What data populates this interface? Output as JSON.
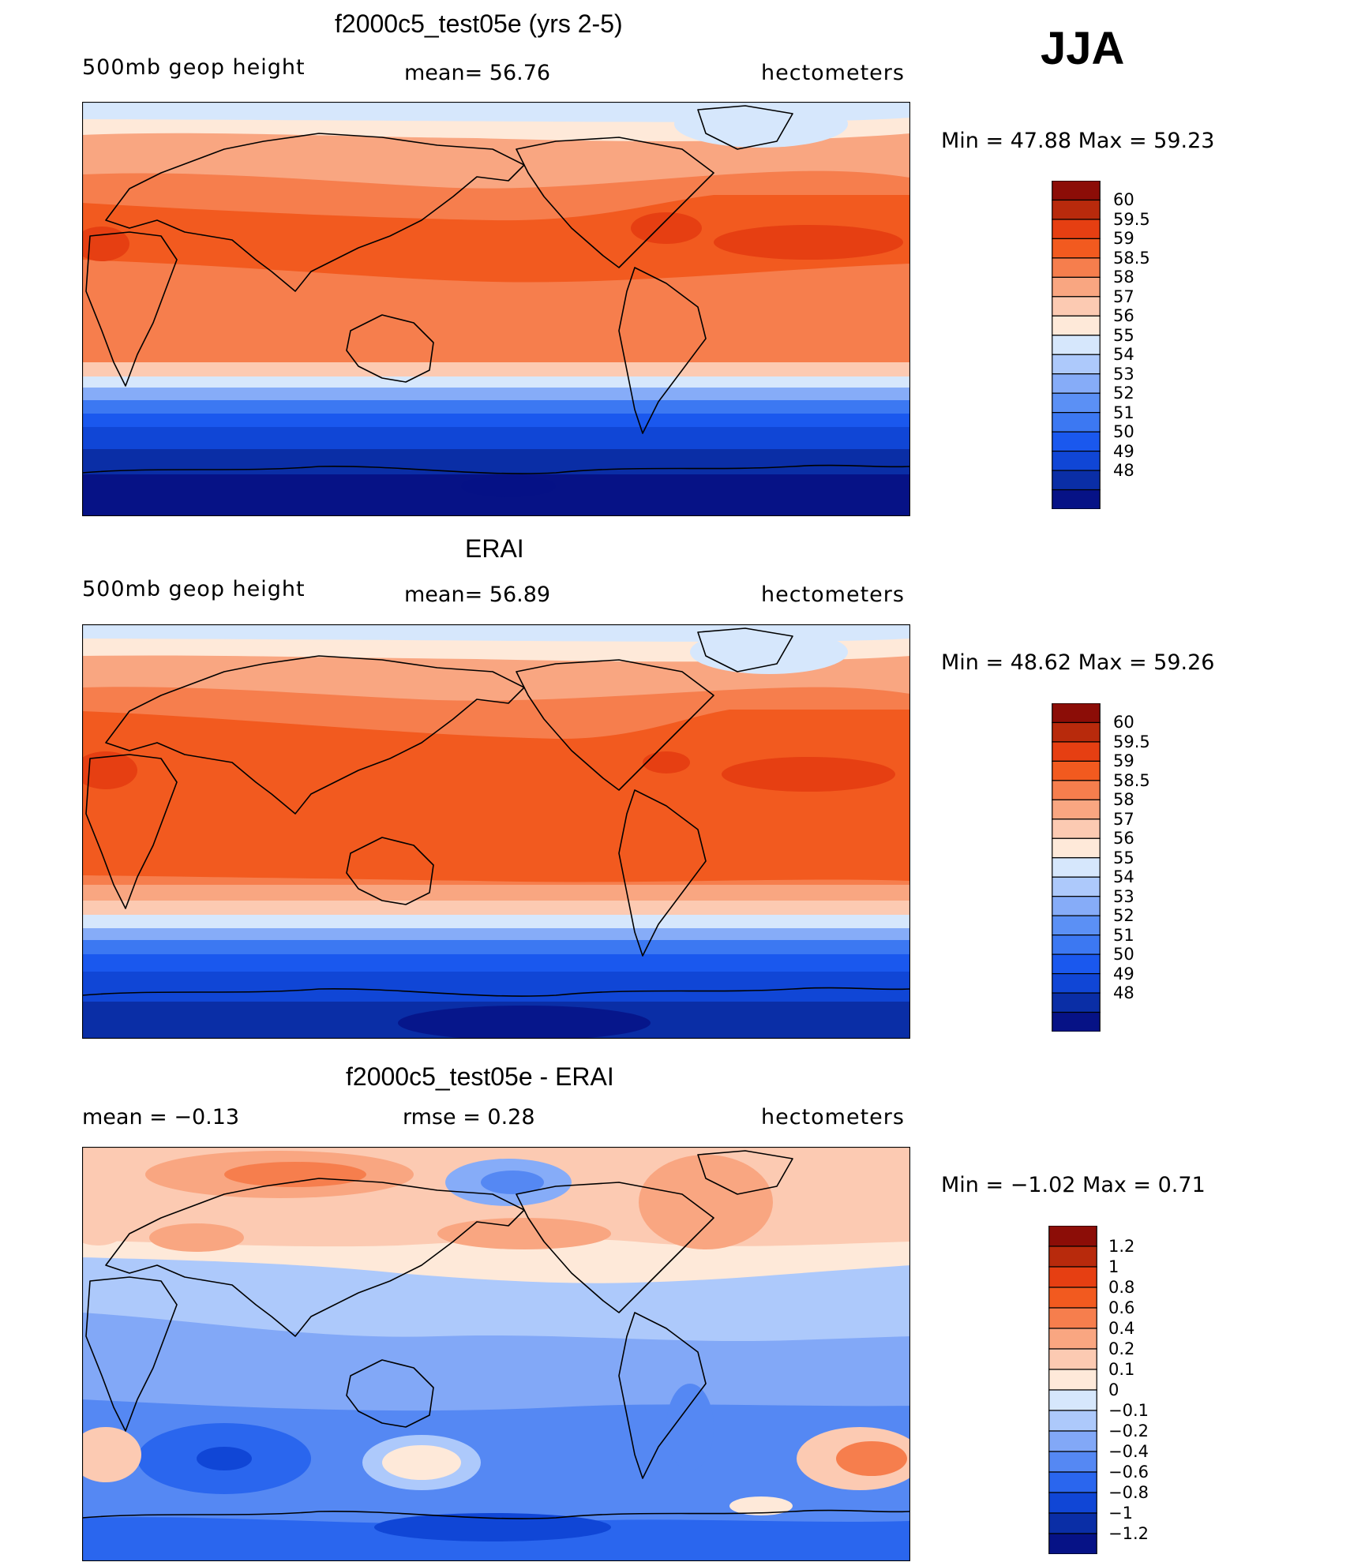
{
  "season": "JJA",
  "colors": {
    "abs": [
      "#061286",
      "#0a2ea6",
      "#1046d6",
      "#1a58ee",
      "#3c78f2",
      "#5b90f5",
      "#86acf8",
      "#adc9fb",
      "#d6e7fc",
      "#fee9d9",
      "#fccab2",
      "#f9a681",
      "#f67e4d",
      "#f25a1f",
      "#e63f12",
      "#b82a0c",
      "#8c0d07"
    ],
    "diff": [
      "#061286",
      "#0a2ea6",
      "#1046d6",
      "#2a66ee",
      "#5588f3",
      "#82a8f7",
      "#adc9fb",
      "#d6e7fc",
      "#fee9d9",
      "#fccab2",
      "#f9a681",
      "#f67e4d",
      "#f25a1f",
      "#e63f12",
      "#b82a0c",
      "#8c0d07"
    ]
  },
  "panels": [
    {
      "title": "f2000c5_test05e (yrs 2-5)",
      "left_label": "500mb  geop  height",
      "center_label": "mean=   56.76",
      "units": "hectometers",
      "minmax": "Min  =    47.88  Max  =    59.23",
      "colorbar_labels": [
        "60",
        "59.5",
        "59",
        "58.5",
        "58",
        "57",
        "56",
        "55",
        "54",
        "53",
        "52",
        "51",
        "50",
        "49",
        "48"
      ]
    },
    {
      "title": "ERAI",
      "left_label": "500mb  geop  height",
      "center_label": "mean=   56.89",
      "units": "hectometers",
      "minmax": "Min  =    48.62  Max  =    59.26",
      "colorbar_labels": [
        "60",
        "59.5",
        "59",
        "58.5",
        "58",
        "57",
        "56",
        "55",
        "54",
        "53",
        "52",
        "51",
        "50",
        "49",
        "48"
      ]
    },
    {
      "title": "f2000c5_test05e - ERAI",
      "left_label": "mean  =    −0.13",
      "center_label": "rmse  =     0.28",
      "units": "hectometers",
      "minmax": "Min  =    −1.02  Max  =      0.71",
      "colorbar_labels": [
        "1.2",
        "1",
        "0.8",
        "0.6",
        "0.4",
        "0.2",
        "0.1",
        "0",
        "−0.1",
        "−0.2",
        "−0.4",
        "−0.6",
        "−0.8",
        "−1",
        "−1.2"
      ]
    }
  ]
}
